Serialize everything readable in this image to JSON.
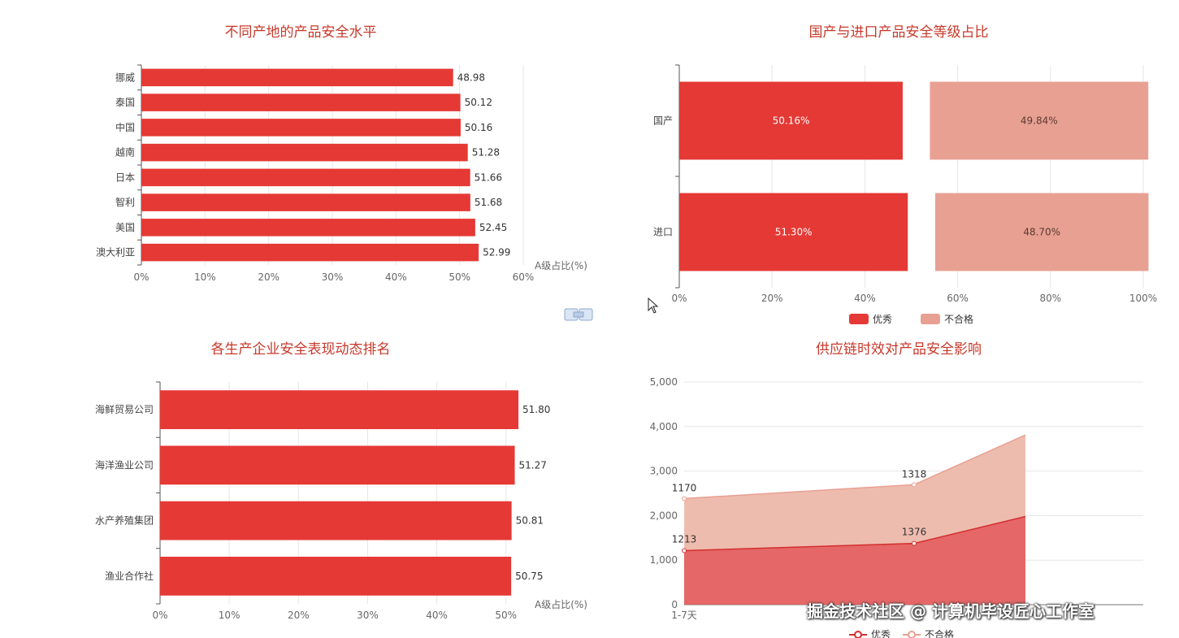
{
  "colors": {
    "title": "#c8392b",
    "bar": "#e53935",
    "good": "#e53935",
    "bad": "#e8a092",
    "axis": "#666666",
    "grid": "#e6e6e6"
  },
  "chart1": {
    "title": "不同产地的产品安全水平",
    "axis_name": "A级占比(%)",
    "chart_data": {
      "type": "bar",
      "orientation": "horizontal",
      "categories": [
        "挪威",
        "泰国",
        "中国",
        "越南",
        "日本",
        "智利",
        "美国",
        "澳大利亚"
      ],
      "values": [
        48.98,
        50.12,
        50.16,
        51.28,
        51.66,
        51.68,
        52.45,
        52.99
      ],
      "value_labels": [
        "48.98",
        "50.12",
        "50.16",
        "51.28",
        "51.66",
        "51.68",
        "52.45",
        "52.99"
      ],
      "xlabel": "A级占比(%)",
      "xlim": [
        0,
        60
      ],
      "ticks": [
        "0%",
        "10%",
        "20%",
        "30%",
        "40%",
        "50%",
        "60%"
      ]
    }
  },
  "chart2": {
    "title": "国产与进口产品安全等级占比",
    "chart_data": {
      "type": "bar",
      "orientation": "horizontal",
      "categories": [
        "国产",
        "进口"
      ],
      "series": [
        {
          "name": "优秀",
          "values": [
            50.16,
            51.3
          ],
          "labels": [
            "50.16%",
            "51.30%"
          ]
        },
        {
          "name": "不合格",
          "values": [
            49.84,
            48.7
          ],
          "labels": [
            "49.84%",
            "48.70%"
          ]
        }
      ],
      "xlim": [
        0,
        100
      ],
      "ticks": [
        "0%",
        "20%",
        "40%",
        "60%",
        "80%",
        "100%"
      ],
      "legend": "bottom"
    }
  },
  "chart3": {
    "title": "各生产企业安全表现动态排名",
    "axis_name": "A级占比(%)",
    "chart_data": {
      "type": "bar",
      "orientation": "horizontal",
      "categories": [
        "海鲜贸易公司",
        "海洋渔业公司",
        "水产养殖集团",
        "渔业合作社"
      ],
      "values": [
        51.8,
        51.27,
        50.81,
        50.75
      ],
      "value_labels": [
        "51.80",
        "51.27",
        "50.81",
        "50.75"
      ],
      "xlabel": "A级占比(%)",
      "xlim": [
        0,
        52.5
      ],
      "ticks": [
        "0%",
        "10%",
        "20%",
        "30%",
        "40%",
        "50%"
      ]
    }
  },
  "chart4": {
    "title": "供应链时效对产品安全影响",
    "chart_data": {
      "type": "area",
      "stacked": true,
      "categories": [
        "1-7天",
        "",
        ""
      ],
      "series": [
        {
          "name": "优秀",
          "values": [
            1213,
            1376,
            1980
          ],
          "labels": [
            "1213",
            "1376",
            ""
          ]
        },
        {
          "name": "不合格",
          "values": [
            1170,
            1318,
            1830
          ],
          "labels": [
            "1170",
            "1318",
            ""
          ]
        }
      ],
      "ylim": [
        0,
        5000
      ],
      "yticks": [
        "0",
        "1,000",
        "2,000",
        "3,000",
        "4,000",
        "5,000"
      ],
      "legend": "bottom"
    }
  },
  "watermark": "掘金技术社区 @ 计算机毕设匠心工作室"
}
